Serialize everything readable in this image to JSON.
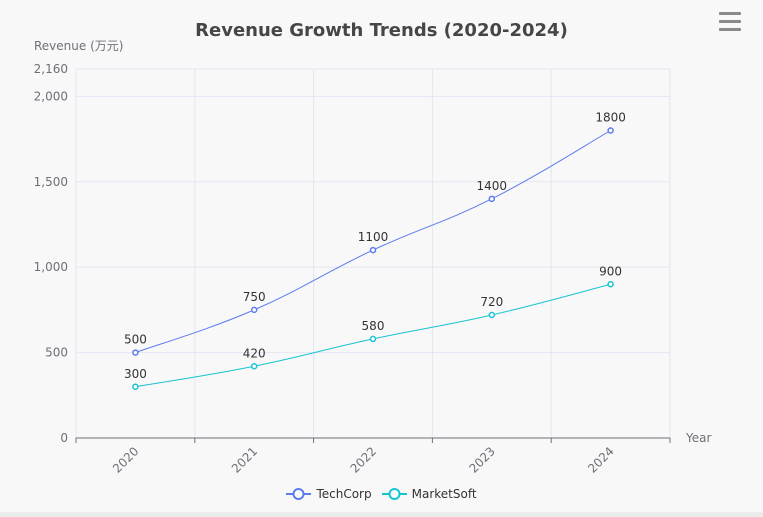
{
  "chart_data": {
    "type": "line",
    "title": "Revenue Growth Trends (2020-2024)",
    "xlabel": "Year",
    "ylabel": "Revenue (万元)",
    "categories": [
      "2020",
      "2021",
      "2022",
      "2023",
      "2024"
    ],
    "ylim": [
      0,
      2160
    ],
    "yticks": [
      "0",
      "500",
      "1,000",
      "1,500",
      "2,000",
      "2,160"
    ],
    "ytick_values": [
      0,
      500,
      1000,
      1500,
      2000,
      2160
    ],
    "grid": true,
    "smooth": true,
    "legend_position": "bottom",
    "series": [
      {
        "name": "TechCorp",
        "values": [
          500,
          750,
          1100,
          1400,
          1800
        ],
        "color": "#5b7bf0"
      },
      {
        "name": "MarketSoft",
        "values": [
          300,
          420,
          580,
          720,
          900
        ],
        "color": "#16c4d2"
      }
    ]
  },
  "toolbox": {
    "icon": "menu-icon"
  }
}
